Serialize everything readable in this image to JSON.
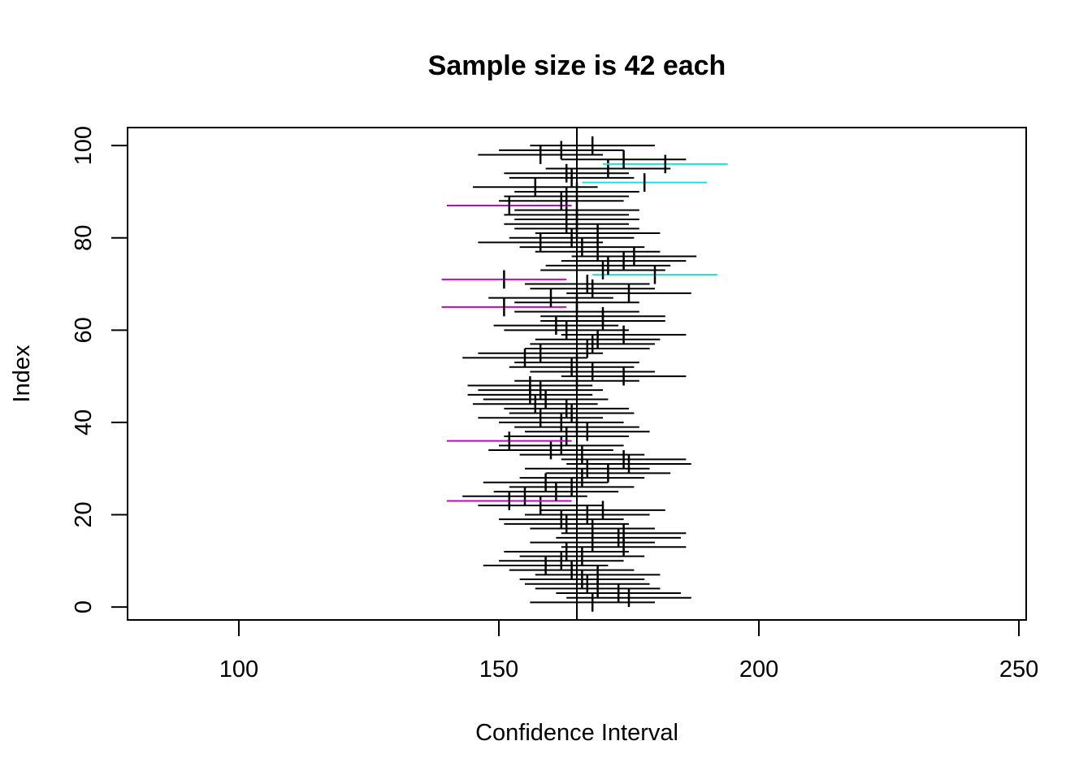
{
  "chart_data": {
    "type": "scatter",
    "title": "Sample size is 42 each",
    "xlabel": "Confidence Interval",
    "ylabel": "Index",
    "xlim": [
      78.6,
      251.4
    ],
    "ylim": [
      -2.8,
      103.9
    ],
    "xticks": [
      100,
      150,
      200,
      250
    ],
    "yticks": [
      0,
      20,
      40,
      60,
      80,
      100
    ],
    "grid": false,
    "true_mean": 165,
    "margin": 12,
    "colors": {
      "covers": "#000000",
      "below": "#CC00CC",
      "above": "#22DDDD",
      "mean_tick": "#000000"
    },
    "means": [
      168,
      175,
      173,
      169,
      167,
      166,
      169,
      164,
      159,
      162,
      166,
      163,
      174,
      168,
      173,
      174,
      168,
      163,
      162,
      167,
      170,
      158,
      152,
      155,
      161,
      164,
      159,
      166,
      171,
      167,
      175,
      174,
      166,
      160,
      162,
      152,
      163,
      167,
      165,
      162,
      158,
      164,
      163,
      157,
      159,
      156,
      158,
      156,
      165,
      174,
      168,
      164,
      165,
      155,
      158,
      167,
      168,
      169,
      174,
      163,
      161,
      170,
      170,
      165,
      151,
      165,
      160,
      175,
      168,
      167,
      151,
      180,
      170,
      171,
      174,
      176,
      169,
      166,
      158,
      164,
      169,
      165,
      163,
      165,
      163,
      165,
      152,
      162,
      163,
      165,
      157,
      178,
      164,
      163,
      171,
      182,
      174,
      158,
      162,
      168
    ]
  }
}
